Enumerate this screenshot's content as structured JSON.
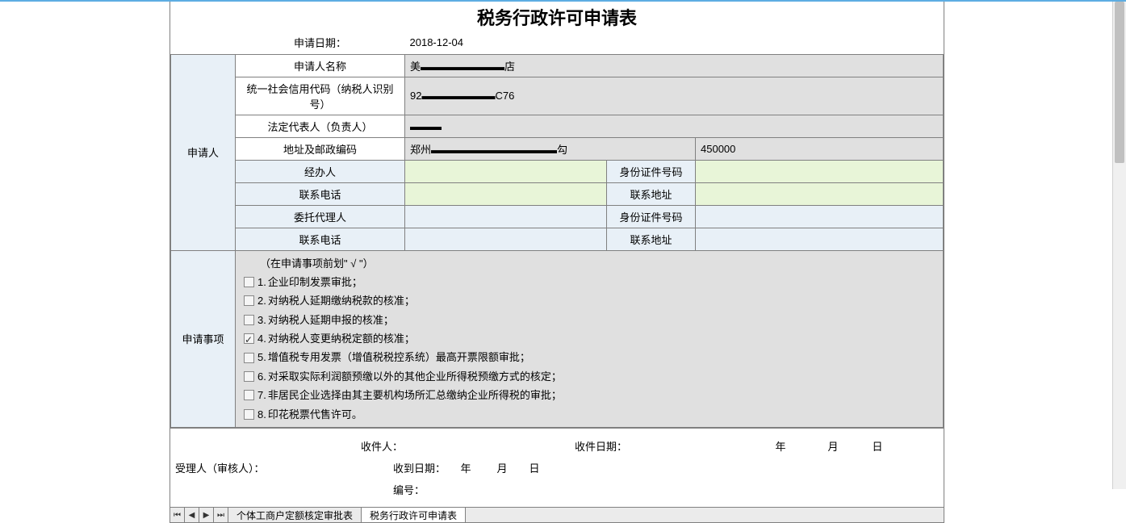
{
  "title": "税务行政许可申请表",
  "apply_date": {
    "label": "申请日期：",
    "value": "2018-12-04"
  },
  "applicant": {
    "section_label": "申请人",
    "name": {
      "label": "申请人名称",
      "value": "美▬▬▬▬▬▬▬▬店"
    },
    "credit_code": {
      "label": "统一社会信用代码（纳税人识别号）",
      "value": "92▬▬▬▬▬▬▬C76"
    },
    "legal_rep": {
      "label": "法定代表人（负责人）",
      "value": "▬▬▬"
    },
    "address": {
      "label": "地址及邮政编码",
      "value": "郑州▬▬▬▬▬▬▬▬▬▬▬▬勾",
      "postal": "450000"
    },
    "handler": {
      "label": "经办人",
      "id_label": "身份证件号码"
    },
    "phone1": {
      "label": "联系电话",
      "addr_label": "联系地址"
    },
    "agent": {
      "label": "委托代理人",
      "id_label": "身份证件号码"
    },
    "phone2": {
      "label": "联系电话",
      "addr_label": "联系地址"
    }
  },
  "items": {
    "section_label": "申请事项",
    "note": "（在申请事项前划\" √ \"）",
    "list": [
      {
        "num": "1.",
        "text": "企业印制发票审批；",
        "checked": false
      },
      {
        "num": "2.",
        "text": "对纳税人延期缴纳税款的核准；",
        "checked": false
      },
      {
        "num": "3.",
        "text": "对纳税人延期申报的核准；",
        "checked": false
      },
      {
        "num": "4.",
        "text": "对纳税人变更纳税定额的核准；",
        "checked": true
      },
      {
        "num": "5.",
        "text": "增值税专用发票（增值税税控系统）最高开票限额审批；",
        "checked": false
      },
      {
        "num": "6.",
        "text": "对采取实际利润额预缴以外的其他企业所得税预缴方式的核定；",
        "checked": false
      },
      {
        "num": "7.",
        "text": "非居民企业选择由其主要机构场所汇总缴纳企业所得税的审批；",
        "checked": false
      },
      {
        "num": "8.",
        "text": "印花税票代售许可。",
        "checked": false
      }
    ]
  },
  "footer": {
    "reviewer_label": "受理人（审核人）：",
    "receiver_label": "收件人：",
    "receive_date_label": "收件日期：",
    "date_ymd": {
      "year": "年",
      "month": "月",
      "day": "日"
    },
    "receipt_date_label": "收到日期：",
    "serial_label": "编号："
  },
  "tabs": {
    "tab1": "个体工商户定额核定审批表",
    "tab2": "税务行政许可申请表"
  },
  "colors": {
    "blue_bg": "#e8f0f7",
    "gray_bg": "#e0e0e0",
    "green_bg": "#e8f5d8",
    "border": "#808080"
  }
}
